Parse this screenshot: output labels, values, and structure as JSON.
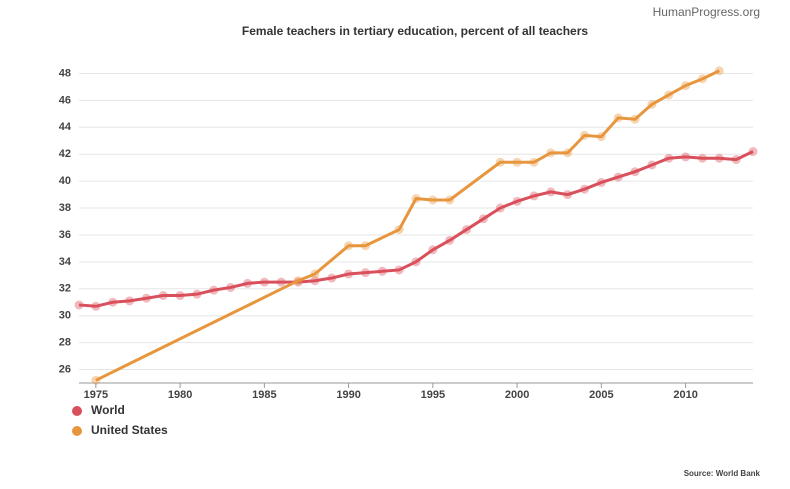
{
  "chart_data": {
    "type": "line",
    "title": "Female teachers in tertiary education, percent of all teachers",
    "watermark": "HumanProgress.org",
    "source": "Source: World Bank",
    "xlim": [
      1974,
      2014
    ],
    "xticks": [
      1975,
      1980,
      1985,
      1990,
      1995,
      2000,
      2005,
      2010
    ],
    "ylim": [
      25,
      49
    ],
    "yticks": [
      26,
      28,
      30,
      32,
      34,
      36,
      38,
      40,
      42,
      44,
      46,
      48
    ],
    "grid": true,
    "legend": "bottom-left",
    "series": [
      {
        "name": "World",
        "color": "#d9505c",
        "x": [
          1974,
          1975,
          1976,
          1977,
          1978,
          1979,
          1980,
          1981,
          1982,
          1983,
          1984,
          1985,
          1986,
          1987,
          1988,
          1989,
          1990,
          1991,
          1992,
          1993,
          1994,
          1995,
          1996,
          1997,
          1998,
          1999,
          2000,
          2001,
          2002,
          2003,
          2004,
          2005,
          2006,
          2007,
          2008,
          2009,
          2010,
          2011,
          2012,
          2013,
          2014
        ],
        "values": [
          30.8,
          30.7,
          31.0,
          31.1,
          31.3,
          31.5,
          31.5,
          31.6,
          31.9,
          32.1,
          32.4,
          32.5,
          32.5,
          32.5,
          32.6,
          32.8,
          33.1,
          33.2,
          33.3,
          33.4,
          34.0,
          34.9,
          35.6,
          36.4,
          37.2,
          38.0,
          38.5,
          38.9,
          39.2,
          39.0,
          39.4,
          39.9,
          40.3,
          40.7,
          41.2,
          41.7,
          41.8,
          41.7,
          41.7,
          41.6,
          42.2
        ]
      },
      {
        "name": "United States",
        "color": "#e8963e",
        "x": [
          1975,
          1987,
          1988,
          1990,
          1991,
          1993,
          1994,
          1995,
          1996,
          1999,
          2000,
          2001,
          2002,
          2003,
          2004,
          2005,
          2006,
          2007,
          2008,
          2009,
          2010,
          2011,
          2012
        ],
        "values": [
          25.2,
          32.6,
          33.1,
          35.2,
          35.2,
          36.4,
          38.7,
          38.6,
          38.6,
          41.4,
          41.4,
          41.4,
          42.1,
          42.1,
          43.4,
          43.3,
          44.7,
          44.6,
          45.7,
          46.4,
          47.1,
          47.6,
          48.2
        ]
      }
    ]
  }
}
